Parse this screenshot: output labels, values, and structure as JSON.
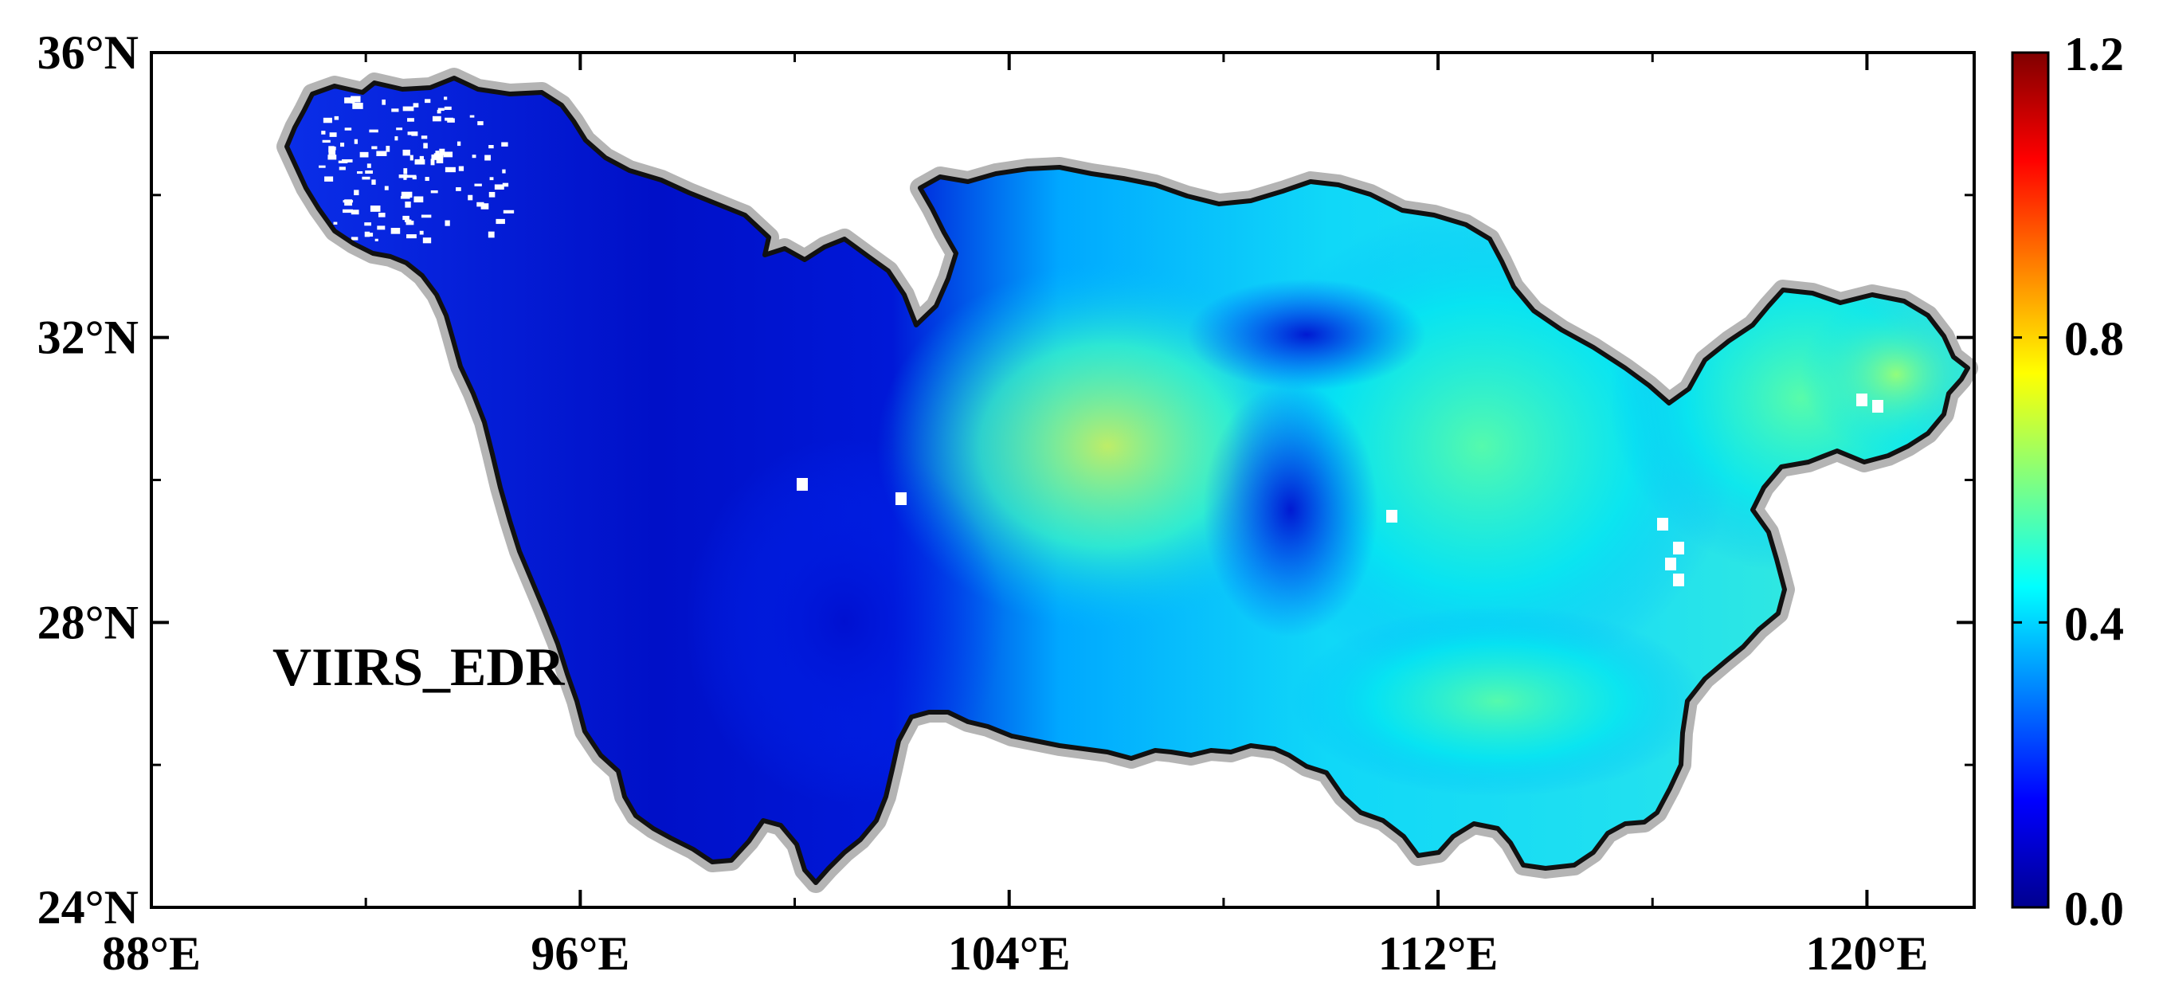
{
  "map": {
    "panel_label": "VIIRS_EDR",
    "lon_ticks": [
      {
        "lon": 88,
        "label": "88°E"
      },
      {
        "lon": 96,
        "label": "96°E"
      },
      {
        "lon": 104,
        "label": "104°E"
      },
      {
        "lon": 112,
        "label": "112°E"
      },
      {
        "lon": 120,
        "label": "120°E"
      }
    ],
    "lat_ticks": [
      {
        "lat": 36,
        "label": "36°N"
      },
      {
        "lat": 32,
        "label": "32°N"
      },
      {
        "lat": 28,
        "label": "28°N"
      },
      {
        "lat": 24,
        "label": "24°N"
      }
    ],
    "lon_range": [
      88,
      122
    ],
    "lat_range": [
      24,
      36
    ],
    "boundary_color": "#111111",
    "boundary_halo_color": "#b4b4b4"
  },
  "colorbar": {
    "min": 0.0,
    "max": 1.2,
    "ticks": [
      {
        "value": 0.0,
        "label": "0.0"
      },
      {
        "value": 0.4,
        "label": "0.4"
      },
      {
        "value": 0.8,
        "label": "0.8"
      },
      {
        "value": 1.2,
        "label": "1.2"
      }
    ],
    "colors": [
      "#00008f",
      "#0000ff",
      "#0080ff",
      "#00ffff",
      "#80ff80",
      "#ffff00",
      "#ff8000",
      "#ff0000",
      "#800000"
    ]
  }
}
